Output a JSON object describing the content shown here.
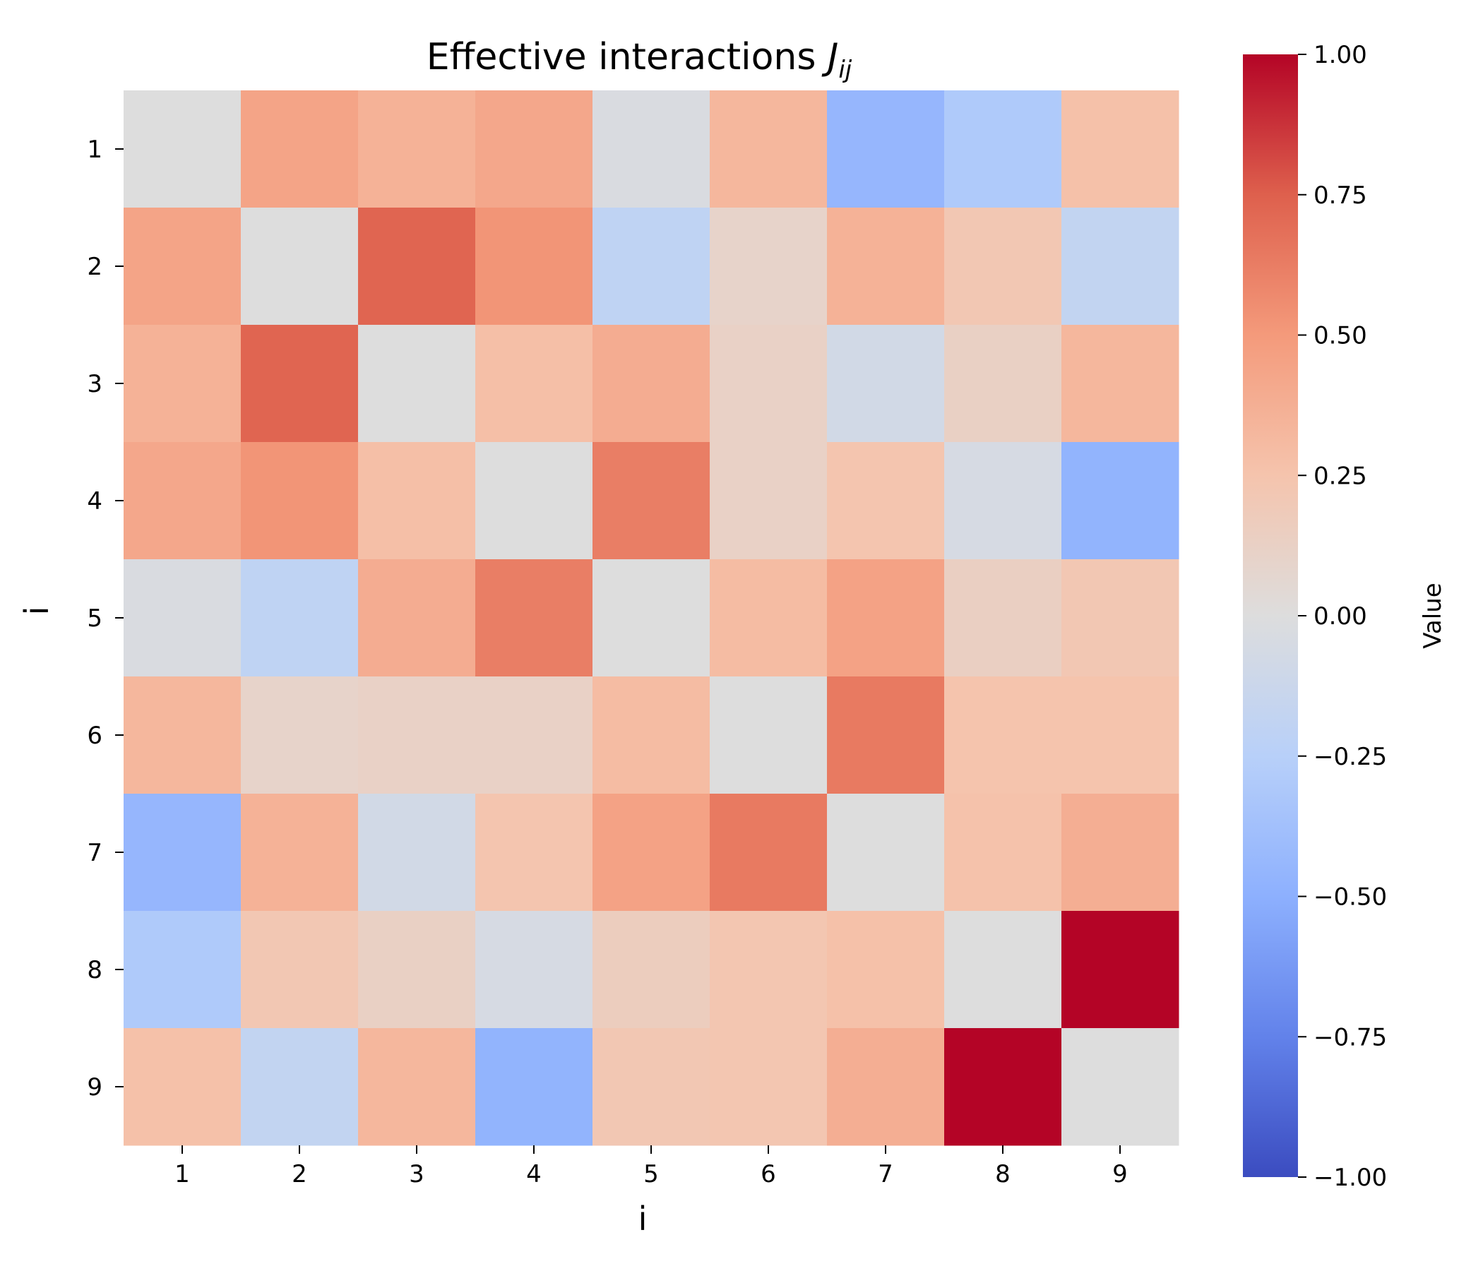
{
  "chart_data": {
    "type": "heatmap",
    "title_main": "Effective interactions ",
    "title_symbol": "J",
    "title_subscript": "ij",
    "xlabel": "i",
    "ylabel": "i",
    "x_categories": [
      "1",
      "2",
      "3",
      "4",
      "5",
      "6",
      "7",
      "8",
      "9"
    ],
    "y_categories": [
      "1",
      "2",
      "3",
      "4",
      "5",
      "6",
      "7",
      "8",
      "9"
    ],
    "values": [
      [
        0.0,
        0.44,
        0.36,
        0.42,
        -0.03,
        0.33,
        -0.45,
        -0.3,
        0.27
      ],
      [
        0.44,
        0.0,
        0.73,
        0.52,
        -0.2,
        0.1,
        0.36,
        0.22,
        -0.18
      ],
      [
        0.36,
        0.73,
        0.0,
        0.28,
        0.39,
        0.12,
        -0.08,
        0.13,
        0.33
      ],
      [
        0.42,
        0.52,
        0.28,
        0.0,
        0.62,
        0.12,
        0.24,
        -0.05,
        -0.47
      ],
      [
        -0.03,
        -0.2,
        0.39,
        0.62,
        0.0,
        0.3,
        0.45,
        0.14,
        0.22
      ],
      [
        0.33,
        0.1,
        0.12,
        0.12,
        0.3,
        0.0,
        0.64,
        0.25,
        0.25
      ],
      [
        -0.45,
        0.36,
        -0.08,
        0.24,
        0.45,
        0.64,
        0.0,
        0.26,
        0.38
      ],
      [
        -0.3,
        0.22,
        0.13,
        -0.05,
        0.16,
        0.23,
        0.27,
        0.0,
        1.0
      ],
      [
        0.27,
        -0.18,
        0.33,
        -0.47,
        0.22,
        0.23,
        0.38,
        1.0,
        0.0
      ]
    ],
    "colorbar": {
      "label": "Value",
      "vmin": -1.0,
      "vmax": 1.0,
      "ticks": [
        "1.00",
        "0.75",
        "0.50",
        "0.25",
        "0.00",
        "−0.25",
        "−0.50",
        "−0.75",
        "−1.00"
      ],
      "tick_values": [
        1.0,
        0.75,
        0.5,
        0.25,
        0.0,
        -0.25,
        -0.5,
        -0.75,
        -1.0
      ],
      "colormap": "coolwarm"
    }
  }
}
